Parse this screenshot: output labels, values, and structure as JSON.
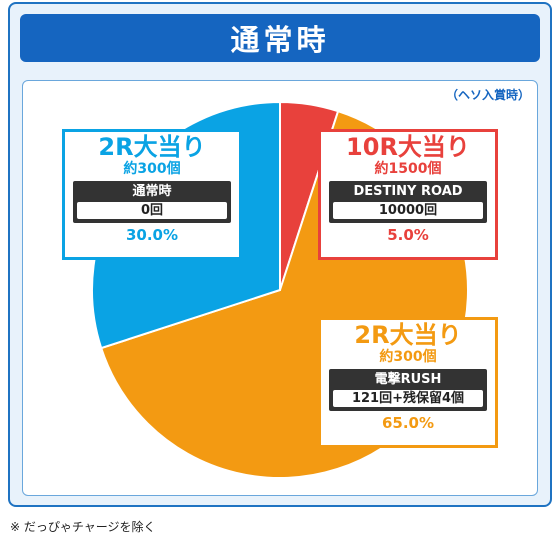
{
  "title": "通常時",
  "subnote": "（ヘソ入賞時）",
  "footnote": "※ だっぴゃチャージを除く",
  "colors": {
    "frame_blue": "#1565c0",
    "slice_cyan": "#0aa3e4",
    "slice_red": "#e8413c",
    "slice_orange": "#f39a12"
  },
  "chart_data": {
    "type": "pie",
    "title": "通常時",
    "slices": [
      {
        "label": "10R大当り",
        "value": 5.0,
        "color": "#e8413c"
      },
      {
        "label": "2R大当り",
        "value": 65.0,
        "color": "#f39a12"
      },
      {
        "label": "2R大当り",
        "value": 30.0,
        "color": "#0aa3e4"
      }
    ]
  },
  "callouts": {
    "left": {
      "title": "2R大当り",
      "balls": "約300個",
      "mode": "通常時",
      "mode_value": "0回",
      "pct": "30.0%"
    },
    "top_right": {
      "title": "10R大当り",
      "balls": "約1500個",
      "mode": "DESTINY ROAD",
      "mode_value": "10000回",
      "pct": "5.0%"
    },
    "bottom_right": {
      "title": "2R大当り",
      "balls": "約300個",
      "mode": "電撃RUSH",
      "mode_value": "121回+残保留4個",
      "pct": "65.0%"
    }
  }
}
